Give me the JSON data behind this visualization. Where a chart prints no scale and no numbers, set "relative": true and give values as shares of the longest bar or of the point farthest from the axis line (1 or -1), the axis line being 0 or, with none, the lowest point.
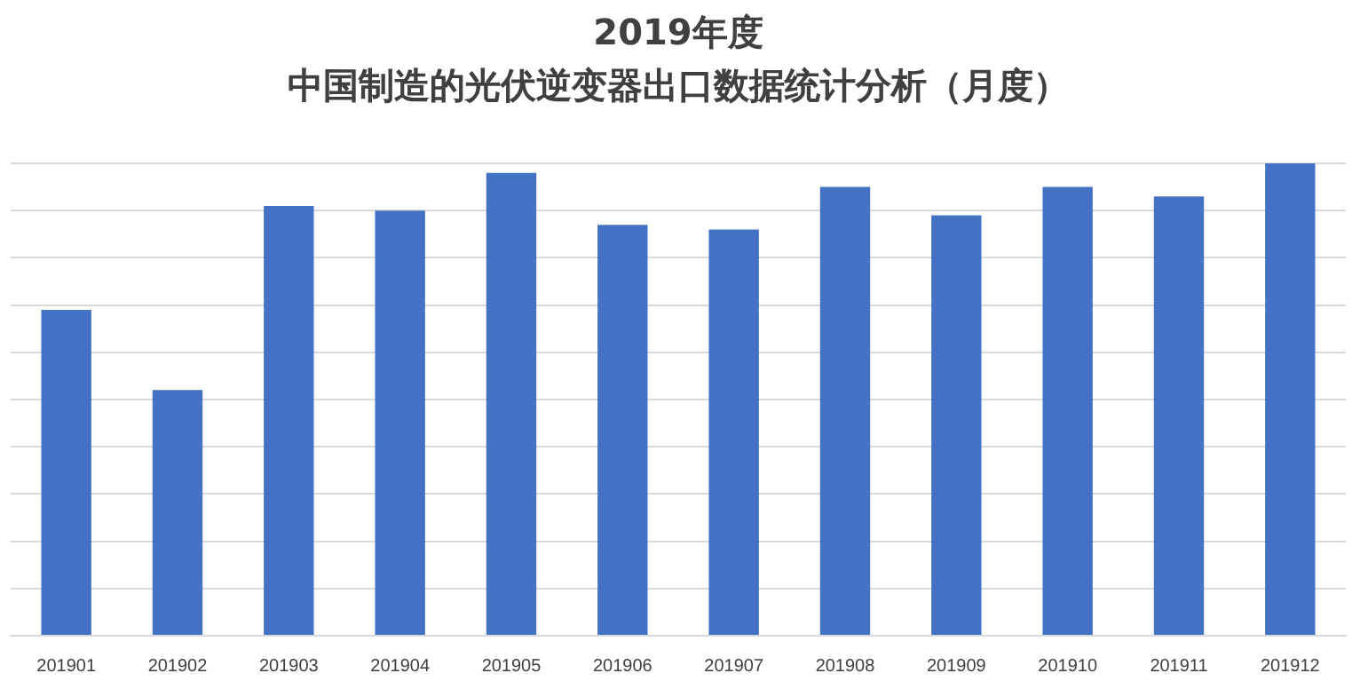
{
  "chart_data": {
    "type": "bar",
    "title": "2019年度",
    "subtitle": "中国制造的光伏逆变器出口数据统计分析（月度）",
    "categories": [
      "201901",
      "201902",
      "201903",
      "201904",
      "201905",
      "201906",
      "201907",
      "201908",
      "201909",
      "201910",
      "201911",
      "201912"
    ],
    "values": [
      0.69,
      0.52,
      0.91,
      0.9,
      0.98,
      0.87,
      0.86,
      0.95,
      0.89,
      0.95,
      0.93,
      1
    ],
    "color": "#4472c4",
    "relative": true,
    "grid": "y",
    "legend": false
  }
}
